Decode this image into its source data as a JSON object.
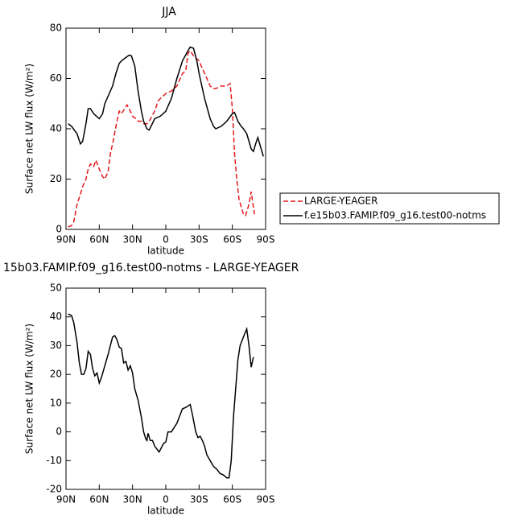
{
  "chart_data": [
    {
      "type": "line",
      "title": "JJA",
      "xlabel": "latitude",
      "ylabel": "Surface net LW flux (W/m²)",
      "xlim": [
        90,
        -90
      ],
      "ylim": [
        0,
        80
      ],
      "xticks": [
        {
          "value": 90,
          "label": "90N"
        },
        {
          "value": 60,
          "label": "60N"
        },
        {
          "value": 30,
          "label": "30N"
        },
        0,
        {
          "value": -30,
          "label": "30S"
        },
        {
          "value": -60,
          "label": "60S"
        },
        {
          "value": -90,
          "label": "90S"
        }
      ],
      "yticks": [
        0,
        20,
        40,
        60,
        80
      ],
      "legend": "outside-right",
      "series": [
        {
          "name": "LARGE-YEAGER",
          "color": "#e41a1c",
          "dash": true,
          "x": [
            88,
            85,
            83,
            80,
            77,
            75,
            72,
            70,
            68,
            65,
            63,
            60,
            57,
            55,
            52,
            50,
            47,
            45,
            42,
            40,
            37,
            35,
            32,
            30,
            27,
            25,
            22,
            20,
            17,
            15,
            10,
            7,
            5,
            0,
            -5,
            -10,
            -15,
            -18,
            -20,
            -22,
            -25,
            -30,
            -35,
            -40,
            -43,
            -45,
            -50,
            -55,
            -58,
            -60,
            -62,
            -64,
            -66,
            -68,
            -70,
            -72,
            -75,
            -77,
            -78,
            -80
          ],
          "values": [
            1,
            1.5,
            3,
            10,
            14,
            17,
            20,
            24,
            26,
            25,
            27.5,
            24,
            21,
            20,
            23,
            30,
            36,
            41,
            47,
            46,
            48,
            49.5,
            47,
            45,
            44,
            43,
            43,
            42,
            42,
            43,
            47,
            51,
            52,
            54,
            55,
            57,
            62,
            63,
            70,
            71,
            69,
            67,
            62,
            57,
            56,
            56,
            57,
            57,
            58,
            48,
            30,
            20,
            12,
            9,
            6,
            5.5,
            10,
            15,
            12,
            6
          ]
        },
        {
          "name": "f.e15b03.FAMIP.f09_g16.test00-notms",
          "color": "#000000",
          "dash": false,
          "x": [
            88,
            85,
            80,
            77,
            75,
            72,
            70,
            68,
            65,
            60,
            57,
            55,
            50,
            48,
            45,
            42,
            40,
            37,
            33,
            31,
            28,
            25,
            22,
            20,
            17,
            15,
            10,
            5,
            0,
            -5,
            -10,
            -15,
            -20,
            -22,
            -25,
            -28,
            -30,
            -35,
            -40,
            -43,
            -45,
            -50,
            -55,
            -60,
            -62,
            -65,
            -68,
            -70,
            -73,
            -77,
            -79,
            -81,
            -83,
            -86,
            -88
          ],
          "values": [
            42,
            41,
            38,
            34,
            35,
            42,
            48,
            48,
            46,
            44,
            46,
            50,
            55,
            57,
            62,
            66,
            67,
            68,
            69.3,
            69,
            65,
            55,
            47,
            43,
            40,
            39.5,
            44,
            45,
            47,
            52,
            60,
            67,
            71,
            72.5,
            72,
            67,
            62,
            52,
            44,
            41,
            40,
            41,
            43,
            46,
            46.5,
            43,
            41,
            40,
            38,
            32,
            31,
            34,
            36.5,
            32,
            29
          ]
        }
      ]
    },
    {
      "type": "line",
      "title": "15b03.FAMIP.f09_g16.test00-notms - LARGE-YEAGER",
      "xlabel": "latitude",
      "ylabel": "Surface net LW flux (W/m²)",
      "xlim": [
        90,
        -90
      ],
      "ylim": [
        -20,
        50
      ],
      "xticks": [
        {
          "value": 90,
          "label": "90N"
        },
        {
          "value": 60,
          "label": "60N"
        },
        {
          "value": 30,
          "label": "30N"
        },
        0,
        {
          "value": -30,
          "label": "30S"
        },
        {
          "value": -60,
          "label": "60S"
        },
        {
          "value": -90,
          "label": "90S"
        }
      ],
      "yticks": [
        -20,
        -10,
        0,
        10,
        20,
        30,
        40,
        50
      ],
      "series": [
        {
          "color": "#000000",
          "dash": false,
          "x": [
            88,
            85,
            83,
            80,
            78,
            76,
            74,
            72,
            70,
            68,
            66,
            64,
            62,
            60,
            58,
            55,
            52,
            50,
            48,
            46,
            44,
            42,
            40,
            38,
            36,
            34,
            32,
            30,
            28,
            25,
            22,
            20,
            18,
            17,
            16,
            14,
            12,
            10,
            8,
            6,
            4,
            2,
            0,
            -2,
            -5,
            -10,
            -15,
            -18,
            -22,
            -24,
            -27,
            -29,
            -31,
            -33,
            -35,
            -37,
            -40,
            -43,
            -46,
            -49,
            -52,
            -55,
            -57,
            -59,
            -61,
            -63,
            -65,
            -67,
            -69,
            -71,
            -73,
            -75,
            -77,
            -79
          ],
          "values": [
            41,
            40.5,
            38,
            31,
            24,
            20,
            20,
            22,
            28,
            27,
            22,
            19.5,
            20.5,
            17,
            19,
            23,
            27,
            30,
            33,
            33.5,
            32,
            29.5,
            29,
            24,
            24.5,
            21.5,
            23,
            20.5,
            15,
            11,
            5,
            0,
            -2.5,
            -3,
            -0.5,
            -3,
            -3,
            -5,
            -6,
            -7,
            -5.5,
            -4,
            -3.5,
            0,
            0,
            3,
            8,
            8.5,
            9.5,
            6,
            0,
            -2,
            -1.5,
            -3,
            -5,
            -8,
            -10,
            -12,
            -13,
            -14.5,
            -15,
            -16,
            -16,
            -10,
            5,
            15,
            25,
            30,
            32,
            34,
            35.8,
            30,
            22.5,
            26
          ]
        }
      ]
    }
  ]
}
